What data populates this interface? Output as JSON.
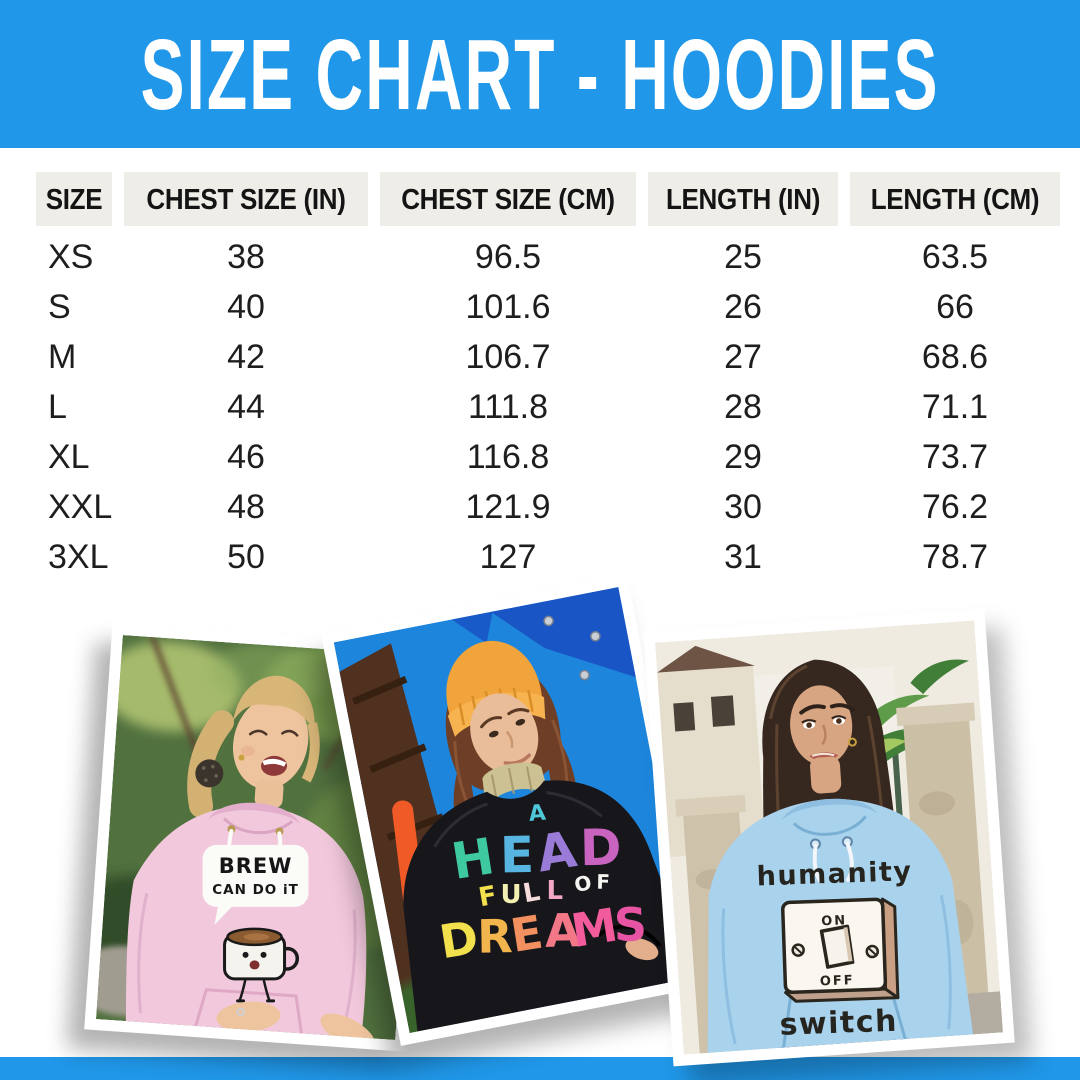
{
  "header": {
    "title": "SIZE CHART - HOODIES",
    "band_color": "#2097E8",
    "text_color": "#FFFFFF"
  },
  "table": {
    "header_bg": "#EFEDE8",
    "columns": [
      "SIZE",
      "CHEST SIZE (IN)",
      "CHEST SIZE (CM)",
      "LENGTH (IN)",
      "LENGTH (CM)"
    ],
    "rows": [
      [
        "XS",
        "38",
        "96.5",
        "25",
        "63.5"
      ],
      [
        "S",
        "40",
        "101.6",
        "26",
        "66"
      ],
      [
        "M",
        "42",
        "106.7",
        "27",
        "68.6"
      ],
      [
        "L",
        "44",
        "111.8",
        "28",
        "71.1"
      ],
      [
        "XL",
        "46",
        "116.8",
        "29",
        "73.7"
      ],
      [
        "XXL",
        "48",
        "121.9",
        "30",
        "76.2"
      ],
      [
        "3XL",
        "50",
        "127",
        "31",
        "78.7"
      ]
    ]
  },
  "photos": {
    "pink": {
      "hoodie_color": "#F2C8DC",
      "bubble_line1": "BREW",
      "bubble_line2": "CAN DO iT"
    },
    "black": {
      "hoodie_color": "#17171B",
      "word_a": [
        [
          "A",
          "#4EC8D8"
        ]
      ],
      "word_head": [
        [
          "H",
          "#3EC9A0"
        ],
        [
          "E",
          "#58B4E0"
        ],
        [
          "A",
          "#9B7BD8"
        ],
        [
          "D",
          "#C863C0"
        ]
      ],
      "word_full": [
        [
          "F",
          "#F2E14C"
        ],
        [
          "U",
          "#F2EFB0"
        ],
        [
          "L",
          "#F6DCDC"
        ],
        [
          "L",
          "#F2A8C4"
        ]
      ],
      "word_of": [
        [
          "O",
          "#F4F6F2"
        ],
        [
          "F",
          "#F4F6F2"
        ]
      ],
      "word_dreams": [
        [
          "D",
          "#F2E14C"
        ],
        [
          "R",
          "#F2B44C"
        ],
        [
          "E",
          "#F29060"
        ],
        [
          "A",
          "#F27888"
        ],
        [
          "M",
          "#F25C9C"
        ],
        [
          "S",
          "#E854A4"
        ]
      ]
    },
    "blue": {
      "hoodie_color": "#A9D2ED",
      "line_top": "humanity",
      "line_bottom": "switch",
      "switch_on": "ON",
      "switch_off": "OFF"
    }
  }
}
